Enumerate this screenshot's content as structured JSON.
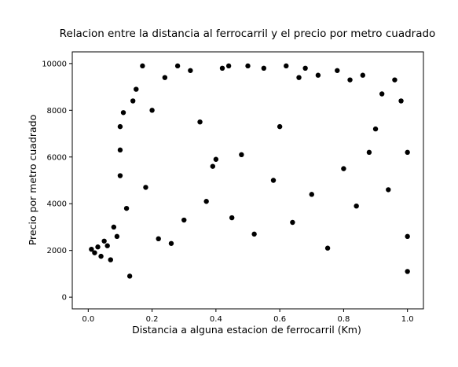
{
  "chart_data": {
    "type": "scatter",
    "title": "Relacion entre la distancia al ferrocarril y el precio por metro cuadrado",
    "xlabel": "Distancia a alguna estacion de ferrocarril (Km)",
    "ylabel": "Precio por metro cuadrado",
    "xlim": [
      -0.05,
      1.05
    ],
    "ylim": [
      -500,
      10500
    ],
    "xticks": [
      0.0,
      0.2,
      0.4,
      0.6,
      0.8,
      1.0
    ],
    "xtick_labels": [
      "0.0",
      "0.2",
      "0.4",
      "0.6",
      "0.8",
      "1.0"
    ],
    "yticks": [
      0,
      2000,
      4000,
      6000,
      8000,
      10000
    ],
    "ytick_labels": [
      "0",
      "2000",
      "4000",
      "6000",
      "8000",
      "10000"
    ],
    "grid": false,
    "marker_color": "#000000",
    "series": [
      {
        "points": [
          [
            0.01,
            2050
          ],
          [
            0.02,
            1900
          ],
          [
            0.03,
            2150
          ],
          [
            0.04,
            1750
          ],
          [
            0.05,
            2400
          ],
          [
            0.06,
            2200
          ],
          [
            0.07,
            1600
          ],
          [
            0.08,
            3000
          ],
          [
            0.09,
            2600
          ],
          [
            0.1,
            5200
          ],
          [
            0.1,
            6300
          ],
          [
            0.1,
            7300
          ],
          [
            0.11,
            7900
          ],
          [
            0.12,
            3800
          ],
          [
            0.13,
            900
          ],
          [
            0.14,
            8400
          ],
          [
            0.15,
            8900
          ],
          [
            0.17,
            9900
          ],
          [
            0.18,
            4700
          ],
          [
            0.2,
            8000
          ],
          [
            0.22,
            2500
          ],
          [
            0.24,
            9400
          ],
          [
            0.26,
            2300
          ],
          [
            0.28,
            9900
          ],
          [
            0.3,
            3300
          ],
          [
            0.32,
            9700
          ],
          [
            0.35,
            7500
          ],
          [
            0.37,
            4100
          ],
          [
            0.39,
            5600
          ],
          [
            0.4,
            5900
          ],
          [
            0.42,
            9800
          ],
          [
            0.44,
            9900
          ],
          [
            0.45,
            3400
          ],
          [
            0.48,
            6100
          ],
          [
            0.5,
            9900
          ],
          [
            0.52,
            2700
          ],
          [
            0.55,
            9800
          ],
          [
            0.58,
            5000
          ],
          [
            0.6,
            7300
          ],
          [
            0.62,
            9900
          ],
          [
            0.64,
            3200
          ],
          [
            0.66,
            9400
          ],
          [
            0.68,
            9800
          ],
          [
            0.7,
            4400
          ],
          [
            0.72,
            9500
          ],
          [
            0.75,
            2100
          ],
          [
            0.78,
            9700
          ],
          [
            0.8,
            5500
          ],
          [
            0.82,
            9300
          ],
          [
            0.84,
            3900
          ],
          [
            0.86,
            9500
          ],
          [
            0.88,
            6200
          ],
          [
            0.9,
            7200
          ],
          [
            0.92,
            8700
          ],
          [
            0.94,
            4600
          ],
          [
            0.96,
            9300
          ],
          [
            0.98,
            8400
          ],
          [
            1.0,
            2600
          ],
          [
            1.0,
            6200
          ],
          [
            1.0,
            1100
          ]
        ]
      }
    ]
  }
}
